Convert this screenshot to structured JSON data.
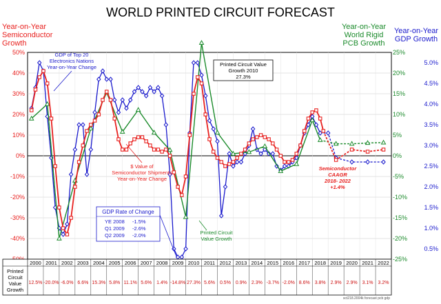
{
  "chart_data": {
    "type": "line",
    "title": "WORLD PRINTED CIRCUIT FORECAST",
    "colors": {
      "semiconductor": "#e8201e",
      "pcb": "#1a8a2a",
      "gdp": "#1818cc",
      "table_values": "#cc1010"
    },
    "axes": {
      "left": {
        "label_lines": [
          "Year-on-Year",
          "Semiconductor",
          "Growth"
        ],
        "range": [
          -50,
          50
        ],
        "ticks": [
          "50%",
          "40%",
          "30%",
          "20%",
          "10%",
          "0%",
          "-10%",
          "-20%",
          "-30%",
          "-40%",
          "-50%"
        ]
      },
      "right_pcb": {
        "label_lines": [
          "Year-on-Year",
          "World Rigid",
          "PCB Growth"
        ],
        "range": [
          -25,
          25
        ],
        "ticks": [
          "25%",
          "20%",
          "15%",
          "10%",
          "5%",
          "0%",
          "-5%",
          "-10%",
          "-15%",
          "-20%",
          "-25%"
        ]
      },
      "right_gdp": {
        "label_lines": [
          "Year-on-Year",
          "GDP Growth"
        ],
        "range": [
          0.25,
          5.25
        ],
        "ticks": [
          "5.0%",
          "4.5%",
          "4.0%",
          "3.5%",
          "3.0%",
          "2.5%",
          "2.0%",
          "1.5%",
          "1.0%",
          "0.5%"
        ]
      }
    },
    "years": [
      "2000",
      "2001",
      "2002",
      "2003",
      "2004",
      "2005",
      "2006",
      "2007",
      "2008",
      "2009",
      "2010",
      "2011",
      "2012",
      "2013",
      "2014",
      "2015",
      "2016",
      "2017",
      "2018",
      "2019",
      "2020",
      "2021",
      "2022"
    ],
    "table": {
      "row_label_lines": [
        "Printed",
        "Circuit",
        "Value",
        "Growth"
      ],
      "values": [
        "12.5%",
        "-20.0%",
        "-6.0%",
        "6.6%",
        "15.3%",
        "5.8%",
        "11.1%",
        "5.6%",
        "1.4%",
        "-14.8%",
        "27.3%",
        "5.6%",
        "0.5%",
        "0.9%",
        "2.3%",
        "-3.7%",
        "-2.0%",
        "8.6%",
        "3.8%",
        "2.9%",
        "2.9%",
        "3.1%",
        "3.2%"
      ]
    },
    "annotations": {
      "gdp_top20": [
        "GDP of Top 20",
        "Electronics Nations",
        "Year-on-Year Change"
      ],
      "pcb_2010": [
        "Printed Circuit Value",
        "Growth 2010",
        "27.3%"
      ],
      "semi_value": [
        "$ Value of",
        "Semiconductor Shipments",
        "Year-on-Year Change"
      ],
      "gdp_rate": {
        "title": "GDP Rate of Change",
        "rows": [
          [
            "YE 2008",
            "-1.5%"
          ],
          [
            "Q1 2009",
            "-2.6%"
          ],
          [
            "Q2 2009",
            "-2.0%"
          ]
        ]
      },
      "pcb_growth": [
        "Printed Circuit",
        "Value Growth"
      ],
      "caagr": [
        "Semiconductor",
        "CAAGR",
        "2018- 2022",
        "+1.4%"
      ],
      "source": "sct218.2004k forecast pcb gdp"
    },
    "series": [
      {
        "name": "Semiconductor",
        "axis": "left",
        "forecast_from": 2018.2,
        "points": [
          [
            1999.75,
            22
          ],
          [
            2000,
            32
          ],
          [
            2000.25,
            38
          ],
          [
            2000.5,
            41
          ],
          [
            2000.75,
            35
          ],
          [
            2001,
            18
          ],
          [
            2001.25,
            -5
          ],
          [
            2001.5,
            -25
          ],
          [
            2001.75,
            -35
          ],
          [
            2002,
            -38
          ],
          [
            2002.25,
            -30
          ],
          [
            2002.5,
            -15
          ],
          [
            2002.75,
            -3
          ],
          [
            2003,
            5
          ],
          [
            2003.25,
            12
          ],
          [
            2003.5,
            15
          ],
          [
            2003.75,
            17
          ],
          [
            2004,
            20
          ],
          [
            2004.25,
            27
          ],
          [
            2004.5,
            31
          ],
          [
            2004.75,
            27
          ],
          [
            2005,
            18
          ],
          [
            2005.25,
            8
          ],
          [
            2005.5,
            3
          ],
          [
            2005.75,
            3
          ],
          [
            2006,
            6
          ],
          [
            2006.25,
            8
          ],
          [
            2006.5,
            9
          ],
          [
            2006.75,
            9
          ],
          [
            2007,
            7
          ],
          [
            2007.25,
            5
          ],
          [
            2007.5,
            3
          ],
          [
            2007.75,
            3
          ],
          [
            2008,
            2
          ],
          [
            2008.25,
            3
          ],
          [
            2008.5,
            0
          ],
          [
            2008.75,
            -8
          ],
          [
            2009,
            -15
          ],
          [
            2009.25,
            -19
          ],
          [
            2009.5,
            -10
          ],
          [
            2009.75,
            10
          ],
          [
            2010,
            30
          ],
          [
            2010.25,
            38
          ],
          [
            2010.5,
            35
          ],
          [
            2010.75,
            20
          ],
          [
            2011,
            8
          ],
          [
            2011.25,
            2
          ],
          [
            2011.5,
            -1
          ],
          [
            2011.75,
            -3
          ],
          [
            2012,
            -5
          ],
          [
            2012.25,
            -4
          ],
          [
            2012.5,
            -3
          ],
          [
            2012.75,
            -1
          ],
          [
            2013,
            1
          ],
          [
            2013.25,
            3
          ],
          [
            2013.5,
            6
          ],
          [
            2013.75,
            8
          ],
          [
            2014,
            9
          ],
          [
            2014.25,
            10
          ],
          [
            2014.5,
            9
          ],
          [
            2014.75,
            8
          ],
          [
            2015,
            6
          ],
          [
            2015.25,
            3
          ],
          [
            2015.5,
            0
          ],
          [
            2015.75,
            -3
          ],
          [
            2016,
            -3
          ],
          [
            2016.25,
            -2
          ],
          [
            2016.5,
            1
          ],
          [
            2016.75,
            5
          ],
          [
            2017,
            12
          ],
          [
            2017.25,
            18
          ],
          [
            2017.5,
            21
          ],
          [
            2017.75,
            22
          ],
          [
            2018,
            18
          ],
          [
            2018.2,
            12
          ],
          [
            2019,
            -2
          ],
          [
            2020,
            3
          ],
          [
            2021,
            2
          ],
          [
            2022,
            3
          ]
        ]
      },
      {
        "name": "World Rigid PCB",
        "axis": "right_pcb",
        "forecast_from": 2018,
        "points": [
          [
            1999.75,
            9
          ],
          [
            2000.75,
            12.5
          ],
          [
            2001.5,
            -20
          ],
          [
            2002.5,
            -6
          ],
          [
            2003.5,
            6.6
          ],
          [
            2004.5,
            15.3
          ],
          [
            2005.5,
            5.8
          ],
          [
            2006.5,
            11.1
          ],
          [
            2007.5,
            5.6
          ],
          [
            2008.5,
            1.4
          ],
          [
            2009.5,
            -14.8
          ],
          [
            2010.5,
            27.3
          ],
          [
            2011.5,
            5.6
          ],
          [
            2012.5,
            0.5
          ],
          [
            2013.5,
            0.9
          ],
          [
            2014.5,
            2.3
          ],
          [
            2015.5,
            -3.7
          ],
          [
            2016.5,
            -2
          ],
          [
            2017.5,
            8.6
          ],
          [
            2018,
            3.8
          ],
          [
            2019,
            2.9
          ],
          [
            2020,
            2.9
          ],
          [
            2021,
            3.1
          ],
          [
            2022,
            3.2
          ]
        ]
      },
      {
        "name": "GDP",
        "axis": "right_gdp",
        "forecast_from": 2018,
        "points": [
          [
            1999.75,
            3.9
          ],
          [
            2000,
            4.4
          ],
          [
            2000.25,
            5.0
          ],
          [
            2000.5,
            4.8
          ],
          [
            2000.75,
            3.7
          ],
          [
            2001,
            2.7
          ],
          [
            2001.25,
            1.5
          ],
          [
            2001.5,
            1.0
          ],
          [
            2001.75,
            0.85
          ],
          [
            2002,
            1.1
          ],
          [
            2002.25,
            2.3
          ],
          [
            2002.5,
            2.9
          ],
          [
            2002.75,
            3.5
          ],
          [
            2003,
            3.5
          ],
          [
            2003.25,
            2.3
          ],
          [
            2003.5,
            2.9
          ],
          [
            2003.75,
            3.8
          ],
          [
            2004,
            4.6
          ],
          [
            2004.25,
            4.8
          ],
          [
            2004.5,
            4.6
          ],
          [
            2004.75,
            4.6
          ],
          [
            2005,
            4.1
          ],
          [
            2005.25,
            3.8
          ],
          [
            2005.5,
            4.1
          ],
          [
            2005.75,
            3.9
          ],
          [
            2006,
            4.1
          ],
          [
            2006.25,
            4.3
          ],
          [
            2006.5,
            4.4
          ],
          [
            2006.75,
            4.3
          ],
          [
            2007,
            4.2
          ],
          [
            2007.25,
            4.4
          ],
          [
            2007.5,
            4.3
          ],
          [
            2007.75,
            4.4
          ],
          [
            2008,
            4.2
          ],
          [
            2008.25,
            3.5
          ],
          [
            2008.5,
            2.3
          ],
          [
            2008.75,
            0.5
          ],
          [
            2009,
            0.3
          ],
          [
            2009.25,
            0.3
          ],
          [
            2009.5,
            0.5
          ],
          [
            2009.75,
            3.3
          ],
          [
            2010,
            5.0
          ],
          [
            2010.25,
            5.0
          ],
          [
            2010.5,
            4.7
          ],
          [
            2010.75,
            4.2
          ],
          [
            2011,
            3.6
          ],
          [
            2011.25,
            3.4
          ],
          [
            2011.5,
            3.1
          ],
          [
            2011.75,
            1.3
          ],
          [
            2012,
            2.0
          ],
          [
            2012.25,
            2.8
          ],
          [
            2012.5,
            2.5
          ],
          [
            2012.75,
            2.6
          ],
          [
            2013,
            2.6
          ],
          [
            2013.25,
            2.8
          ],
          [
            2013.5,
            3.0
          ],
          [
            2013.75,
            3.4
          ],
          [
            2014,
            2.9
          ],
          [
            2014.25,
            2.8
          ],
          [
            2014.5,
            2.9
          ],
          [
            2014.75,
            2.8
          ],
          [
            2015,
            2.8
          ],
          [
            2015.25,
            2.5
          ],
          [
            2015.5,
            2.4
          ],
          [
            2015.75,
            2.5
          ],
          [
            2016,
            2.5
          ],
          [
            2016.25,
            2.6
          ],
          [
            2016.5,
            2.7
          ],
          [
            2016.75,
            3.0
          ],
          [
            2017,
            3.3
          ],
          [
            2017.25,
            3.5
          ],
          [
            2017.5,
            3.7
          ],
          [
            2017.75,
            3.5
          ],
          [
            2018,
            3.3
          ],
          [
            2018.5,
            3.3
          ],
          [
            2019,
            2.7
          ],
          [
            2020,
            2.6
          ],
          [
            2021,
            2.6
          ],
          [
            2022,
            2.6
          ]
        ]
      }
    ]
  }
}
